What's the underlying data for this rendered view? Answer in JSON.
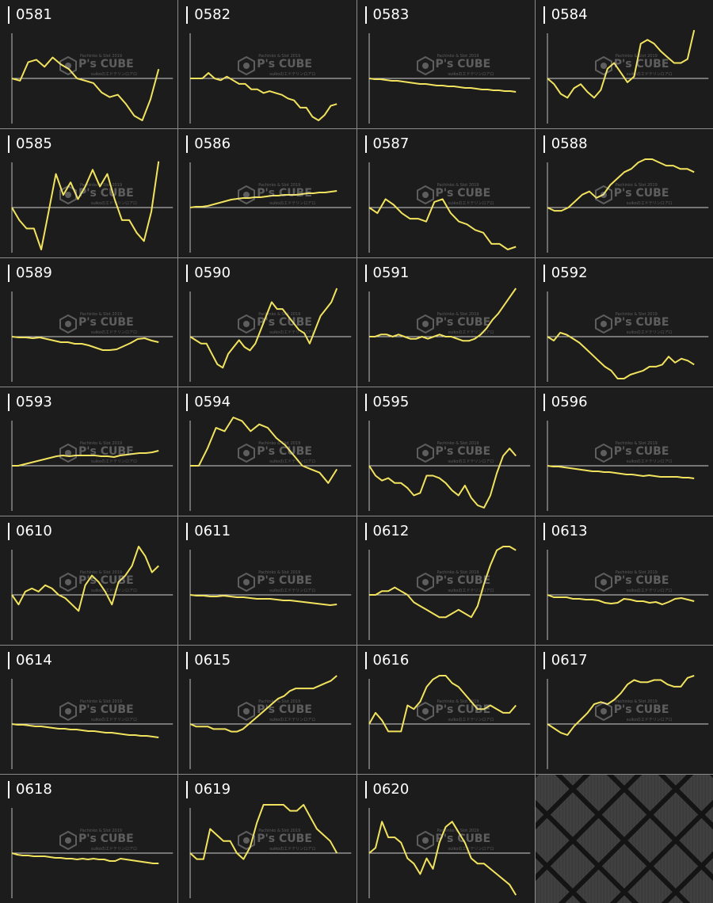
{
  "watermark": {
    "top_line": "Pachinko & Slot 2019",
    "brand": "P's CUBE",
    "sub_line": "suikoの工ドテリンロアロ"
  },
  "colors": {
    "line": "#f2e35e",
    "baseline": "#cfcfcf",
    "axis": "#bdbdbd",
    "background": "#1c1c1c"
  },
  "chart_data": [
    {
      "type": "line",
      "title": "0581",
      "y": [
        0,
        -1,
        7,
        8,
        5,
        9,
        6,
        4,
        0,
        -1,
        -2,
        -6,
        -8,
        -7,
        -11,
        -16,
        -18,
        -9,
        4
      ]
    },
    {
      "type": "line",
      "title": "0582",
      "y": [
        0,
        0,
        0,
        3,
        0,
        -1,
        1,
        -1,
        -3,
        -3,
        -6,
        -6,
        -8,
        -7,
        -8,
        -9,
        -11,
        -12,
        -16,
        -16,
        -21,
        -23,
        -20,
        -15,
        -14
      ]
    },
    {
      "type": "line",
      "title": "0583",
      "y": [
        0,
        -1,
        -1,
        -2,
        -3,
        -3,
        -4,
        -5,
        -6,
        -7,
        -7,
        -8,
        -9,
        -9,
        -10,
        -10,
        -11,
        -12,
        -12,
        -13,
        -14,
        -14,
        -15,
        -15,
        -16,
        -16,
        -17
      ]
    },
    {
      "type": "line",
      "title": "0584",
      "y": [
        0,
        -3,
        -8,
        -10,
        -5,
        -3,
        -7,
        -10,
        -6,
        5,
        8,
        3,
        -2,
        1,
        18,
        20,
        18,
        14,
        11,
        8,
        8,
        10,
        25
      ]
    },
    {
      "type": "line",
      "title": "0585",
      "y": [
        0,
        -3,
        -5,
        -5,
        -10,
        -1,
        8,
        3,
        6,
        2,
        5,
        9,
        5,
        8,
        2,
        -3,
        -3,
        -6,
        -8,
        -1,
        11
      ]
    },
    {
      "type": "line",
      "title": "0586",
      "y": [
        0,
        1,
        1,
        2,
        4,
        6,
        8,
        10,
        11,
        12,
        12,
        13,
        13,
        14,
        15,
        15,
        16,
        16,
        16,
        17,
        18,
        18,
        19,
        19,
        20,
        21
      ]
    },
    {
      "type": "line",
      "title": "0587",
      "y": [
        0,
        -2,
        3,
        1,
        -2,
        -4,
        -4,
        -5,
        2,
        3,
        -2,
        -5,
        -6,
        -8,
        -9,
        -13,
        -13,
        -15,
        -14
      ]
    },
    {
      "type": "line",
      "title": "0588",
      "y": [
        0,
        -1,
        -1,
        0,
        2,
        4,
        5,
        3,
        4,
        7,
        9,
        11,
        12,
        14,
        15,
        15,
        14,
        13,
        13,
        12,
        12,
        11
      ]
    },
    {
      "type": "line",
      "title": "0589",
      "y": [
        0,
        -1,
        -1,
        -2,
        -1,
        -3,
        -5,
        -7,
        -7,
        -9,
        -9,
        -11,
        -14,
        -17,
        -17,
        -16,
        -12,
        -8,
        -3,
        -2,
        -5,
        -7
      ]
    },
    {
      "type": "line",
      "title": "0590",
      "y": [
        0,
        -1,
        -2,
        -2,
        -5,
        -8,
        -9,
        -5,
        -3,
        -1,
        -3,
        -4,
        -2,
        2,
        6,
        10,
        8,
        8,
        6,
        4,
        2,
        1,
        -2,
        2,
        6,
        8,
        10,
        14
      ]
    },
    {
      "type": "line",
      "title": "0591",
      "y": [
        0,
        0,
        1,
        1,
        0,
        1,
        0,
        -1,
        -1,
        0,
        -1,
        0,
        1,
        0,
        0,
        -1,
        -2,
        -2,
        -1,
        1,
        4,
        8,
        11,
        15,
        19,
        23
      ]
    },
    {
      "type": "line",
      "title": "0592",
      "y": [
        0,
        -2,
        2,
        1,
        -1,
        -3,
        -6,
        -9,
        -12,
        -15,
        -17,
        -21,
        -21,
        -19,
        -18,
        -17,
        -15,
        -15,
        -14,
        -10,
        -13,
        -11,
        -12,
        -14
      ]
    },
    {
      "type": "line",
      "title": "0593",
      "y": [
        0,
        0,
        2,
        4,
        6,
        8,
        10,
        12,
        13,
        12,
        13,
        13,
        13,
        13,
        12,
        12,
        11,
        13,
        14,
        15,
        16,
        16,
        17,
        19
      ]
    },
    {
      "type": "line",
      "title": "0594",
      "y": [
        0,
        0,
        5,
        11,
        10,
        14,
        13,
        10,
        12,
        11,
        8,
        6,
        3,
        0,
        -1,
        -2,
        -5,
        -1
      ]
    },
    {
      "type": "line",
      "title": "0595",
      "y": [
        0,
        -4,
        -6,
        -5,
        -7,
        -7,
        -9,
        -12,
        -11,
        -4,
        -4,
        -5,
        -7,
        -10,
        -12,
        -8,
        -13,
        -16,
        -17,
        -12,
        -3,
        4,
        7,
        4
      ]
    },
    {
      "type": "line",
      "title": "0596",
      "y": [
        0,
        -1,
        -1,
        -2,
        -3,
        -4,
        -5,
        -6,
        -7,
        -7,
        -8,
        -8,
        -9,
        -10,
        -11,
        -11,
        -12,
        -13,
        -12,
        -13,
        -14,
        -14,
        -14,
        -14,
        -15,
        -15,
        -16
      ]
    },
    {
      "type": "line",
      "title": "0610",
      "y": [
        0,
        -3,
        1,
        2,
        1,
        3,
        2,
        0,
        -1,
        -3,
        -5,
        3,
        6,
        4,
        1,
        -3,
        4,
        6,
        9,
        15,
        12,
        7,
        9
      ]
    },
    {
      "type": "line",
      "title": "0611",
      "y": [
        0,
        -1,
        -1,
        -2,
        -2,
        -1,
        -2,
        -3,
        -3,
        -4,
        -5,
        -5,
        -5,
        -6,
        -7,
        -7,
        -8,
        -9,
        -10,
        -11,
        -12,
        -13,
        -12
      ]
    },
    {
      "type": "line",
      "title": "0612",
      "y": [
        0,
        0,
        1,
        1,
        2,
        1,
        0,
        -2,
        -3,
        -4,
        -5,
        -6,
        -6,
        -5,
        -4,
        -5,
        -6,
        -3,
        3,
        8,
        12,
        13,
        13,
        12
      ]
    },
    {
      "type": "line",
      "title": "0613",
      "y": [
        0,
        -3,
        -3,
        -3,
        -5,
        -5,
        -6,
        -6,
        -7,
        -10,
        -11,
        -10,
        -5,
        -6,
        -8,
        -8,
        -10,
        -9,
        -12,
        -9,
        -5,
        -4,
        -6,
        -8
      ]
    },
    {
      "type": "line",
      "title": "0614",
      "y": [
        0,
        -1,
        -1,
        -2,
        -3,
        -3,
        -4,
        -5,
        -6,
        -6,
        -7,
        -7,
        -8,
        -9,
        -9,
        -10,
        -11,
        -11,
        -12,
        -13,
        -14,
        -14,
        -15,
        -15,
        -16,
        -17
      ]
    },
    {
      "type": "line",
      "title": "0615",
      "y": [
        0,
        -1,
        -1,
        -1,
        -2,
        -2,
        -2,
        -3,
        -3,
        -2,
        0,
        2,
        4,
        6,
        8,
        10,
        11,
        13,
        14,
        14,
        14,
        14,
        15,
        16,
        17,
        19
      ]
    },
    {
      "type": "line",
      "title": "0616",
      "y": [
        0,
        3,
        1,
        -2,
        -2,
        -2,
        5,
        4,
        6,
        10,
        12,
        13,
        13,
        11,
        10,
        8,
        6,
        4,
        4,
        5,
        4,
        3,
        3,
        5
      ]
    },
    {
      "type": "line",
      "title": "0617",
      "y": [
        0,
        -2,
        -4,
        -5,
        -1,
        2,
        5,
        9,
        10,
        9,
        11,
        14,
        18,
        20,
        19,
        19,
        20,
        20,
        18,
        17,
        17,
        21,
        22
      ]
    },
    {
      "type": "line",
      "title": "0618",
      "y": [
        0,
        -2,
        -3,
        -3,
        -4,
        -4,
        -4,
        -5,
        -6,
        -6,
        -7,
        -7,
        -8,
        -7,
        -8,
        -7,
        -8,
        -8,
        -10,
        -10,
        -7,
        -8,
        -9,
        -10,
        -11,
        -12,
        -13,
        -13
      ]
    },
    {
      "type": "line",
      "title": "0619",
      "y": [
        0,
        -1,
        -1,
        4,
        3,
        2,
        2,
        0,
        -1,
        1,
        5,
        8,
        8,
        8,
        8,
        7,
        7,
        8,
        6,
        4,
        3,
        2,
        0
      ]
    },
    {
      "type": "line",
      "title": "0620",
      "y": [
        0,
        1,
        6,
        3,
        3,
        2,
        -1,
        -2,
        -4,
        -1,
        -3,
        2,
        5,
        6,
        4,
        2,
        -1,
        -2,
        -2,
        -3,
        -4,
        -5,
        -6,
        -8
      ]
    }
  ]
}
